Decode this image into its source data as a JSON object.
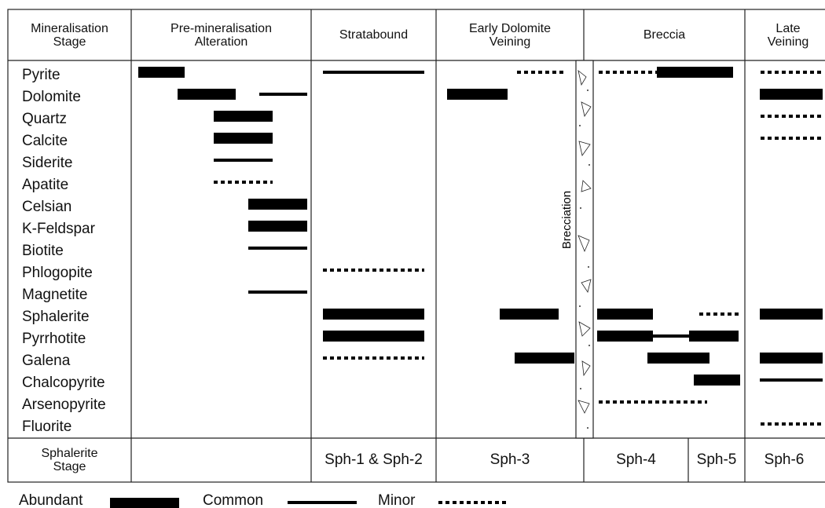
{
  "header": {
    "columns": [
      "Mineralisation Stage",
      "Pre-mineralisation Alteration",
      "Stratabound",
      "Early Dolomite Veining",
      "Breccia",
      "Late Veining"
    ]
  },
  "minerals": [
    "Pyrite",
    "Dolomite",
    "Quartz",
    "Calcite",
    "Siderite",
    "Apatite",
    "Celsian",
    "K-Feldspar",
    "Biotite",
    "Phlogopite",
    "Magnetite",
    "Sphalerite",
    "Pyrrhotite",
    "Galena",
    "Chalcopyrite",
    "Arsenopyrite",
    "Fluorite"
  ],
  "brecciation_label": "Brecciation",
  "sphalerite_stage": {
    "label": "Sphalerite Stage",
    "stages": [
      "Sph-1 & Sph-2",
      "Sph-3",
      "Sph-4",
      "Sph-5",
      "Sph-6"
    ]
  },
  "legend": [
    "Abundant",
    "Common",
    "Minor"
  ]
}
